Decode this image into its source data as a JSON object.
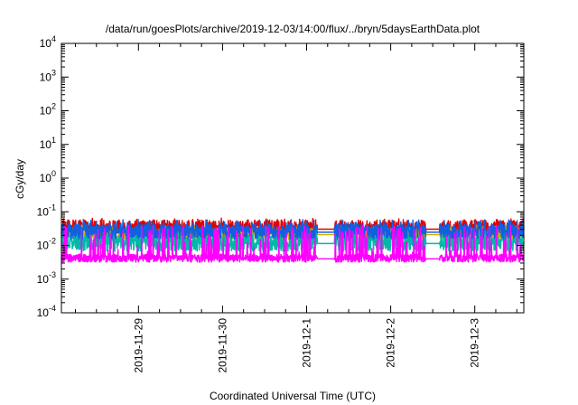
{
  "chart_data": {
    "type": "line",
    "title": "/data/run/goesPlots/archive/2019-12-03/14:00/flux/../bryn/5daysEarthData.plot",
    "xlabel": "Coordinated Universal Time (UTC)",
    "ylabel": "cGy/day",
    "yscale": "log",
    "ylim": [
      0.0001,
      10000
    ],
    "y_ticks": [
      {
        "value": 0.0001,
        "base": "10",
        "exp": "-4"
      },
      {
        "value": 0.001,
        "base": "10",
        "exp": "-3"
      },
      {
        "value": 0.01,
        "base": "10",
        "exp": "-2"
      },
      {
        "value": 0.1,
        "base": "10",
        "exp": "-1"
      },
      {
        "value": 1,
        "base": "10",
        "exp": "0"
      },
      {
        "value": 10,
        "base": "10",
        "exp": "1"
      },
      {
        "value": 100,
        "base": "10",
        "exp": "2"
      },
      {
        "value": 1000,
        "base": "10",
        "exp": "3"
      },
      {
        "value": 10000,
        "base": "10",
        "exp": "4"
      }
    ],
    "xlim": [
      "2019-11-28 02:00",
      "2019-12-03 14:00"
    ],
    "x_ticks": [
      "2019-11-29",
      "2019-11-30",
      "2019-12-1",
      "2019-12-2",
      "2019-12-3"
    ],
    "x_tick_dates": [
      "2019-11-29 00:00",
      "2019-11-30 00:00",
      "2019-12-01 00:00",
      "2019-12-02 00:00",
      "2019-12-03 00:00"
    ],
    "grid": false,
    "legend": "none",
    "gaps": [
      {
        "start": "2019-12-01 03:00",
        "end": "2019-12-01 08:00"
      },
      {
        "start": "2019-12-01 10:00",
        "end": "2019-12-01 10:10"
      },
      {
        "start": "2019-12-02 10:00",
        "end": "2019-12-02 14:00"
      }
    ],
    "series": [
      {
        "color": "#e00000",
        "base": 0.032,
        "spread": 0.25,
        "spike_max": 0.065,
        "spike_rate": 0.35
      },
      {
        "color": "#d0b000",
        "base": 0.022,
        "spread": 0.18,
        "spike_max": 0.04,
        "spike_rate": 0.3
      },
      {
        "color": "#00b8a8",
        "base": 0.012,
        "spread": 0.25,
        "spike_max": 0.03,
        "spike_rate": 0.3
      },
      {
        "color": "#1060e0",
        "base": 0.026,
        "spread": 0.22,
        "spike_max": 0.06,
        "spike_rate": 0.4
      },
      {
        "color": "#ff00ff",
        "base": 0.0042,
        "spread": 0.12,
        "spike_max": 0.04,
        "spike_rate": 0.55
      }
    ]
  }
}
